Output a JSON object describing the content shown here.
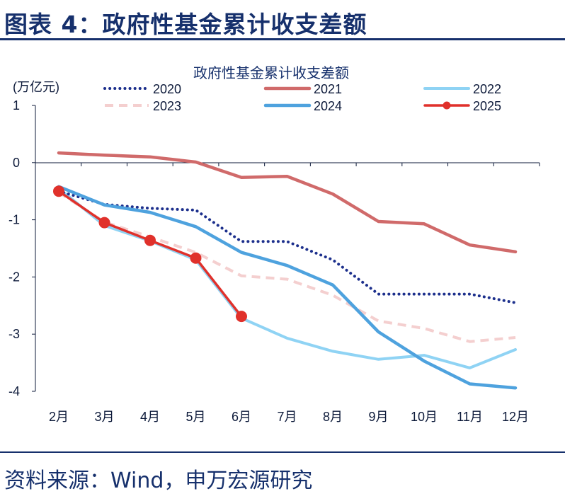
{
  "header": {
    "figure_title": "图表 4：政府性基金累计收支差额"
  },
  "footer": {
    "source": "资料来源：Wind，申万宏源研究"
  },
  "chart_data": {
    "type": "line",
    "title": "政府性基金累计收支差额",
    "ylabel": "(万亿元)",
    "xlabel": "",
    "categories": [
      "2月",
      "3月",
      "4月",
      "5月",
      "6月",
      "7月",
      "8月",
      "9月",
      "10月",
      "11月",
      "12月"
    ],
    "ylim": [
      -4,
      1
    ],
    "yticks": [
      1,
      0,
      -1,
      -2,
      -3,
      -4
    ],
    "ytick_labels": [
      "1",
      "0",
      "-1",
      "-2",
      "-3",
      "-4"
    ],
    "grid": false,
    "legend": "top",
    "series": [
      {
        "name": "2020",
        "color": "#1c2f8c",
        "style": "dotted",
        "values": [
          -0.5,
          -0.73,
          -0.8,
          -0.83,
          -1.38,
          -1.38,
          -1.7,
          -2.3,
          -2.3,
          -2.3,
          -2.45
        ]
      },
      {
        "name": "2021",
        "color": "#d06a6a",
        "style": "solid-thick",
        "values": [
          0.17,
          0.13,
          0.1,
          0.01,
          -0.26,
          -0.24,
          -0.55,
          -1.03,
          -1.07,
          -1.44,
          -1.56
        ]
      },
      {
        "name": "2022",
        "color": "#8fd3f4",
        "style": "solid",
        "values": [
          -0.45,
          -1.1,
          -1.37,
          -1.7,
          -2.72,
          -3.07,
          -3.3,
          -3.44,
          -3.37,
          -3.59,
          -3.27
        ]
      },
      {
        "name": "2023",
        "color": "#f4cfcf",
        "style": "dashed",
        "values": [
          -0.52,
          -1.04,
          -1.3,
          -1.57,
          -1.98,
          -2.04,
          -2.32,
          -2.77,
          -2.9,
          -3.13,
          -3.06
        ]
      },
      {
        "name": "2024",
        "color": "#4ea2de",
        "style": "solid-thick",
        "values": [
          -0.42,
          -0.74,
          -0.87,
          -1.12,
          -1.57,
          -1.8,
          -2.14,
          -2.96,
          -3.47,
          -3.87,
          -3.94
        ]
      },
      {
        "name": "2025",
        "color": "#e0312b",
        "style": "markers",
        "values": [
          -0.5,
          -1.05,
          -1.36,
          -1.67,
          -2.69,
          null,
          null,
          null,
          null,
          null,
          null
        ]
      }
    ]
  }
}
